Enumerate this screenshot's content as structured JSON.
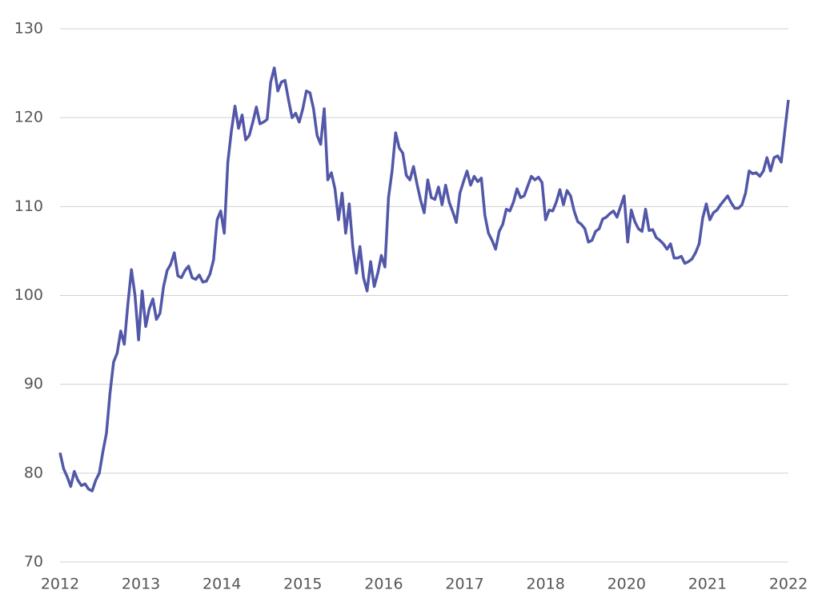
{
  "chart_data": {
    "type": "line",
    "x_labels": [
      "2012",
      "2013",
      "2014",
      "2015",
      "2016",
      "2017",
      "2018",
      "2020",
      "2021",
      "2022"
    ],
    "ylim": [
      70,
      130
    ],
    "yticks": [
      70,
      80,
      90,
      100,
      110,
      120,
      130
    ],
    "grid": true,
    "color": "#5257a8",
    "values": [
      82.3,
      80.5,
      79.6,
      78.5,
      80.2,
      79.2,
      78.6,
      78.8,
      78.2,
      78.0,
      79.2,
      80,
      82.4,
      84.5,
      89,
      92.5,
      93.5,
      96,
      94.5,
      99,
      102.9,
      100,
      95,
      100.5,
      96.5,
      98.5,
      99.6,
      97.3,
      98,
      101,
      102.8,
      103.5,
      104.8,
      102.2,
      102,
      102.8,
      103.3,
      102,
      101.8,
      102.3,
      101.5,
      101.6,
      102.4,
      104,
      108.5,
      109.5,
      107,
      115,
      118.5,
      121.3,
      118.8,
      120.3,
      117.5,
      118,
      119.5,
      121.2,
      119.3,
      119.5,
      119.8,
      124,
      125.6,
      123,
      124,
      124.2,
      122,
      120,
      120.5,
      119.5,
      121,
      123,
      122.8,
      121,
      118,
      117,
      121,
      113,
      113.8,
      112,
      108.5,
      111.5,
      107,
      110.3,
      105.5,
      102.5,
      105.5,
      102,
      100.5,
      103.8,
      101,
      102.5,
      104.5,
      103.2,
      111,
      114,
      118.3,
      116.6,
      116,
      113.5,
      113,
      114.5,
      112.5,
      110.7,
      109.3,
      113,
      111,
      110.8,
      112.2,
      110.2,
      112.4,
      110.5,
      109.4,
      108.2,
      111.5,
      112.8,
      114,
      112.4,
      113.4,
      112.8,
      113.2,
      109,
      107,
      106.2,
      105.2,
      107.2,
      108,
      109.7,
      109.5,
      110.5,
      112,
      111,
      111.2,
      112.3,
      113.4,
      113,
      113.3,
      112.7,
      108.5,
      109.6,
      109.5,
      110.5,
      111.9,
      110.2,
      111.8,
      111.2,
      109.5,
      108.3,
      108,
      107.5,
      106,
      106.2,
      107.2,
      107.5,
      108.6,
      108.8,
      109.2,
      109.5,
      108.8,
      110,
      111.2,
      106,
      109.6,
      108.3,
      107.5,
      107.2,
      109.7,
      107.3,
      107.4,
      106.5,
      106.2,
      105.8,
      105.2,
      105.8,
      104.2,
      104.2,
      104.4,
      103.6,
      103.8,
      104.1,
      104.8,
      105.8,
      108.7,
      110.3,
      108.5,
      109.3,
      109.6,
      110.2,
      110.7,
      111.2,
      110.4,
      109.8,
      109.8,
      110.2,
      111.5,
      114,
      113.7,
      113.8,
      113.4,
      114,
      115.5,
      114,
      115.5,
      115.7,
      115,
      118.5,
      122
    ]
  }
}
